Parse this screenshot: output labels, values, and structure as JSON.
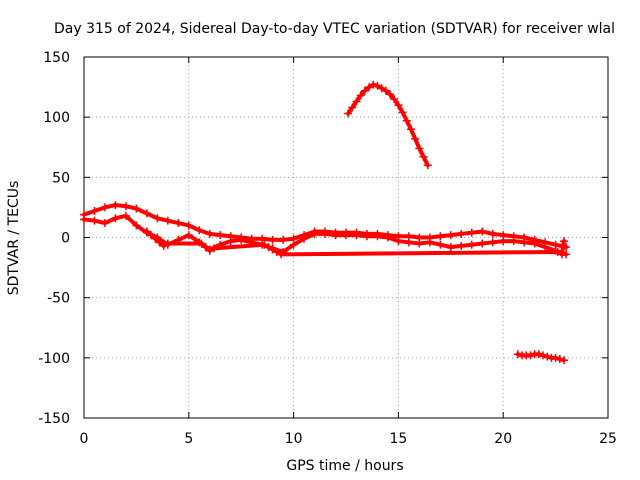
{
  "chart_data": {
    "type": "scatter",
    "title": "Day 315 of 2024, Sidereal Day-to-day VTEC variation (SDTVAR) for receiver wlal",
    "xlabel": "GPS time / hours",
    "ylabel": "SDTVAR / TECUs",
    "xlim": [
      0,
      25
    ],
    "ylim": [
      -150,
      150
    ],
    "xticks": [
      0,
      5,
      10,
      15,
      20,
      25
    ],
    "yticks": [
      -150,
      -100,
      -50,
      0,
      50,
      100,
      150
    ],
    "grid": true,
    "marker": "+",
    "color": "#ff0000",
    "series": [
      {
        "name": "main-band-upper",
        "x": [
          0,
          0.5,
          1,
          1.5,
          2,
          2.5,
          3,
          3.5,
          4,
          4.5,
          5,
          5.5,
          6,
          6.5,
          7,
          7.5,
          8,
          8.5,
          9,
          9.5,
          10,
          10.5,
          11,
          11.5,
          12,
          12.5,
          13,
          13.5,
          14,
          14.5,
          15,
          15.5,
          16,
          16.5,
          17,
          17.5,
          18,
          18.5,
          19,
          19.5,
          20,
          20.5,
          21,
          21.5,
          22,
          22.5,
          23
        ],
        "y": [
          19,
          22,
          25,
          27,
          26,
          24,
          20,
          16,
          14,
          12,
          10,
          6,
          3,
          2,
          1,
          0,
          -1,
          -1,
          -2,
          -2,
          -1,
          2,
          5,
          5,
          4,
          4,
          4,
          3,
          3,
          2,
          1,
          1,
          0,
          0,
          1,
          2,
          3,
          4,
          5,
          3,
          2,
          1,
          0,
          -2,
          -4,
          -6,
          -8
        ]
      },
      {
        "name": "main-band-lower",
        "x": [
          0,
          0.5,
          1,
          1.5,
          2,
          2.5,
          3,
          3.5,
          4,
          4.5,
          5,
          5.5,
          6,
          6.5,
          7,
          7.5,
          8,
          8.5,
          9,
          9.5,
          10,
          10.5,
          11,
          11.5,
          12,
          12.5,
          13,
          13.5,
          14,
          14.5,
          15,
          15.5,
          16,
          16.5,
          17,
          17.5,
          18,
          18.5,
          19,
          19.5,
          20,
          20.5,
          21,
          21.5,
          22,
          22.5,
          23
        ],
        "y": [
          15,
          14,
          12,
          16,
          18,
          10,
          4,
          0,
          -6,
          -2,
          2,
          -4,
          -10,
          -6,
          -3,
          -2,
          -4,
          -6,
          -9,
          -12,
          -6,
          -1,
          3,
          3,
          2,
          2,
          2,
          1,
          1,
          0,
          -3,
          -4,
          -5,
          -4,
          -6,
          -8,
          -7,
          -6,
          -5,
          -4,
          -3,
          -3,
          -4,
          -5,
          -8,
          -11,
          -14
        ]
      },
      {
        "name": "dips",
        "x": [
          3.0,
          3.2,
          3.4,
          3.6,
          3.8,
          4.0,
          5.6,
          5.8,
          6.0,
          6.2,
          8.6,
          8.8,
          9.0,
          9.2,
          9.4,
          22.6,
          22.8,
          22.9
        ],
        "y": [
          5,
          2,
          -1,
          -4,
          -7,
          -5,
          -5,
          -8,
          -11,
          -9,
          -6,
          -8,
          -10,
          -12,
          -14,
          -12,
          -14,
          -3
        ]
      },
      {
        "name": "arc",
        "x": [
          12.6,
          12.8,
          13.0,
          13.2,
          13.4,
          13.6,
          13.8,
          14.0,
          14.2,
          14.4,
          14.6,
          14.8,
          15.0,
          15.2,
          15.4,
          15.6,
          15.8,
          16.0,
          16.2,
          16.4
        ],
        "y": [
          103,
          108,
          113,
          118,
          122,
          125,
          127,
          126,
          124,
          122,
          119,
          115,
          110,
          104,
          97,
          90,
          82,
          74,
          67,
          60
        ]
      },
      {
        "name": "bottom-segment",
        "x": [
          20.7,
          20.9,
          21.1,
          21.3,
          21.5,
          21.7,
          21.9,
          22.1,
          22.3,
          22.5,
          22.7,
          22.9
        ],
        "y": [
          -97,
          -98,
          -98,
          -98,
          -97,
          -97,
          -98,
          -99,
          -100,
          -100,
          -101,
          -102
        ]
      }
    ]
  }
}
